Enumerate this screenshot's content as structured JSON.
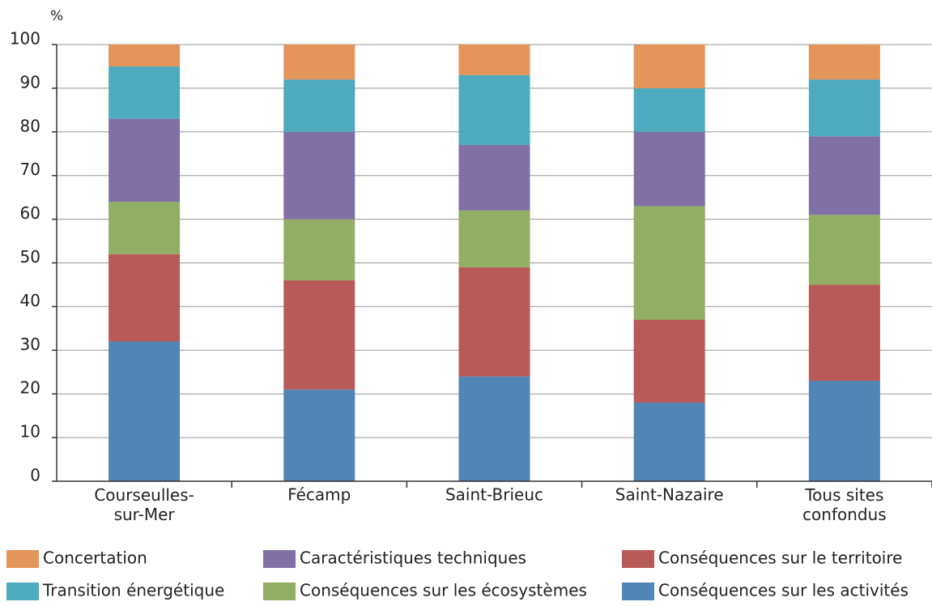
{
  "chart_data": {
    "type": "bar",
    "stacked": true,
    "y_label": "%",
    "categories": [
      "Courseulles-\nsur-Mer",
      "Fécamp",
      "Saint-Brieuc",
      "Saint-Nazaire",
      "Tous sites\nconfondus"
    ],
    "series": [
      {
        "name": "Conséquences sur les activités",
        "color": "#5185b5",
        "values": [
          32,
          21,
          24,
          18,
          23
        ]
      },
      {
        "name": "Conséquences sur le territoire",
        "color": "#b85a57",
        "values": [
          20,
          25,
          25,
          19,
          22
        ]
      },
      {
        "name": "Conséquences sur les écosystèmes",
        "color": "#92ae64",
        "values": [
          12,
          14,
          13,
          26,
          16
        ]
      },
      {
        "name": "Caractéristiques techniques",
        "color": "#8170a5",
        "values": [
          19,
          20,
          15,
          17,
          18
        ]
      },
      {
        "name": "Transition énergétique",
        "color": "#4eaabd",
        "values": [
          12,
          12,
          16,
          10,
          13
        ]
      },
      {
        "name": "Concertation",
        "color": "#e3955a",
        "values": [
          5,
          8,
          7,
          10,
          8
        ]
      }
    ],
    "ylim": [
      0,
      100
    ],
    "yticks": [
      0,
      10,
      20,
      30,
      40,
      50,
      60,
      70,
      80,
      90,
      100
    ],
    "grid": true
  }
}
